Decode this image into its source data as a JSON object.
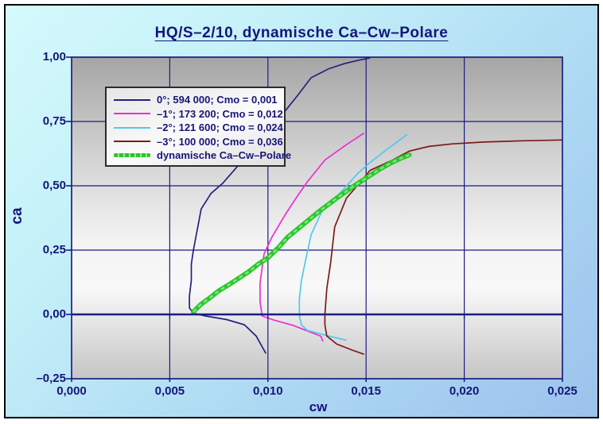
{
  "title": "HQ/S–2/10, dynamische Ca–Cw–Polare",
  "colors": {
    "panel_border": "#000000",
    "background_top_left": "#d4fafc",
    "background_bottom_right": "#9cc2ec",
    "plot_gradient_top": "#a5a5a5",
    "plot_gradient_mid": "#f4f4f4",
    "plot_gradient_bottom": "#c5c5c5",
    "grid": "#1b1b82",
    "text": "#15157a",
    "legend_border": "#2b2b2b"
  },
  "legend": {
    "items": [
      {
        "label": "0°; 594 000; Cmo = 0,001",
        "color": "#22227e",
        "style": "line"
      },
      {
        "label": "–1°; 173 200; Cmo = 0,012",
        "color": "#ea2fd4",
        "style": "line"
      },
      {
        "label": "–2°; 121 600; Cmo = 0,024",
        "color": "#4fc9ee",
        "style": "line"
      },
      {
        "label": "–3°; 100 000; Cmo = 0,036",
        "color": "#7d1a14",
        "style": "line"
      },
      {
        "label": "dynamische Ca–Cw–Polare",
        "color": "#2ec52e",
        "style": "marker-chain"
      }
    ]
  },
  "chart_data": {
    "type": "line",
    "title": "HQ/S–2/10, dynamische Ca–Cw–Polare",
    "xlabel": "cw",
    "ylabel": "ca",
    "xlim": [
      0,
      0.025
    ],
    "ylim": [
      -0.25,
      1.0
    ],
    "grid": true,
    "legend_position": "top-left",
    "x_ticks": {
      "values": [
        0,
        0.005,
        0.01,
        0.015,
        0.02,
        0.025
      ],
      "labels": [
        "0,000",
        "0,005",
        "0,010",
        "0,015",
        "0,020",
        "0,025"
      ]
    },
    "y_ticks": {
      "values": [
        1.0,
        0.75,
        0.5,
        0.25,
        0.0,
        -0.25
      ],
      "labels": [
        "1,00",
        "0,75",
        "0,50",
        "0,25",
        "0,00",
        "–0,25"
      ]
    },
    "series": [
      {
        "name": "0°; 594 000; Cmo = 0,001",
        "color": "#22227e",
        "style": "line",
        "points": [
          [
            0.0099,
            -0.152
          ],
          [
            0.0097,
            -0.125
          ],
          [
            0.0094,
            -0.084
          ],
          [
            0.0088,
            -0.04
          ],
          [
            0.0079,
            -0.02
          ],
          [
            0.0068,
            -0.006
          ],
          [
            0.0062,
            0.005
          ],
          [
            0.006,
            0.025
          ],
          [
            0.006,
            0.071
          ],
          [
            0.0061,
            0.133
          ],
          [
            0.0061,
            0.195
          ],
          [
            0.0062,
            0.248
          ],
          [
            0.0064,
            0.33
          ],
          [
            0.0066,
            0.41
          ],
          [
            0.0071,
            0.47
          ],
          [
            0.0077,
            0.51
          ],
          [
            0.0085,
            0.58
          ],
          [
            0.0094,
            0.66
          ],
          [
            0.01,
            0.72
          ],
          [
            0.0107,
            0.774
          ],
          [
            0.0115,
            0.85
          ],
          [
            0.0122,
            0.92
          ],
          [
            0.0131,
            0.955
          ],
          [
            0.0139,
            0.975
          ],
          [
            0.0146,
            0.988
          ],
          [
            0.0152,
            0.997
          ]
        ]
      },
      {
        "name": "–1°; 173 200; Cmo = 0,012",
        "color": "#ea2fd4",
        "style": "line",
        "points": [
          [
            0.0128,
            -0.105
          ],
          [
            0.0127,
            -0.085
          ],
          [
            0.0113,
            -0.043
          ],
          [
            0.0103,
            -0.022
          ],
          [
            0.0097,
            -0.006
          ],
          [
            0.0096,
            0.05
          ],
          [
            0.0096,
            0.12
          ],
          [
            0.0097,
            0.18
          ],
          [
            0.0098,
            0.235
          ],
          [
            0.0102,
            0.3
          ],
          [
            0.0109,
            0.39
          ],
          [
            0.0115,
            0.46
          ],
          [
            0.012,
            0.515
          ],
          [
            0.0129,
            0.6
          ],
          [
            0.014,
            0.66
          ],
          [
            0.0149,
            0.705
          ]
        ]
      },
      {
        "name": "–2°; 121 600; Cmo = 0,024",
        "color": "#4fc9ee",
        "style": "line",
        "points": [
          [
            0.014,
            -0.1
          ],
          [
            0.0131,
            -0.084
          ],
          [
            0.012,
            -0.062
          ],
          [
            0.0117,
            -0.04
          ],
          [
            0.0116,
            -0.005
          ],
          [
            0.0116,
            0.06
          ],
          [
            0.0117,
            0.13
          ],
          [
            0.0119,
            0.205
          ],
          [
            0.0122,
            0.31
          ],
          [
            0.0128,
            0.41
          ],
          [
            0.0137,
            0.474
          ],
          [
            0.0146,
            0.55
          ],
          [
            0.0152,
            0.59
          ],
          [
            0.016,
            0.638
          ],
          [
            0.0171,
            0.7
          ]
        ]
      },
      {
        "name": "–3°; 100 000; Cmo = 0,036",
        "color": "#7d1a14",
        "style": "line",
        "points": [
          [
            0.0149,
            -0.155
          ],
          [
            0.0143,
            -0.139
          ],
          [
            0.0135,
            -0.115
          ],
          [
            0.013,
            -0.084
          ],
          [
            0.0129,
            -0.04
          ],
          [
            0.0129,
            0.0
          ],
          [
            0.013,
            0.1
          ],
          [
            0.0132,
            0.205
          ],
          [
            0.0134,
            0.34
          ],
          [
            0.014,
            0.452
          ],
          [
            0.0147,
            0.514
          ],
          [
            0.0152,
            0.56
          ],
          [
            0.0163,
            0.598
          ],
          [
            0.0172,
            0.635
          ],
          [
            0.0182,
            0.653
          ],
          [
            0.0194,
            0.663
          ],
          [
            0.021,
            0.67
          ],
          [
            0.023,
            0.675
          ],
          [
            0.025,
            0.678
          ]
        ]
      },
      {
        "name": "dynamische Ca–Cw–Polare",
        "color": "#2ec52e",
        "color_light": "#7fe87f",
        "style": "marker-chain",
        "points": [
          [
            0.0062,
            0.01
          ],
          [
            0.0066,
            0.04
          ],
          [
            0.007,
            0.062
          ],
          [
            0.0075,
            0.092
          ],
          [
            0.008,
            0.115
          ],
          [
            0.0085,
            0.14
          ],
          [
            0.009,
            0.165
          ],
          [
            0.0095,
            0.195
          ],
          [
            0.01,
            0.22
          ],
          [
            0.0105,
            0.257
          ],
          [
            0.011,
            0.3
          ],
          [
            0.0118,
            0.35
          ],
          [
            0.0126,
            0.4
          ],
          [
            0.0135,
            0.452
          ],
          [
            0.0143,
            0.495
          ],
          [
            0.015,
            0.53
          ],
          [
            0.0157,
            0.565
          ],
          [
            0.0163,
            0.59
          ],
          [
            0.0168,
            0.608
          ],
          [
            0.0172,
            0.62
          ]
        ]
      }
    ]
  }
}
